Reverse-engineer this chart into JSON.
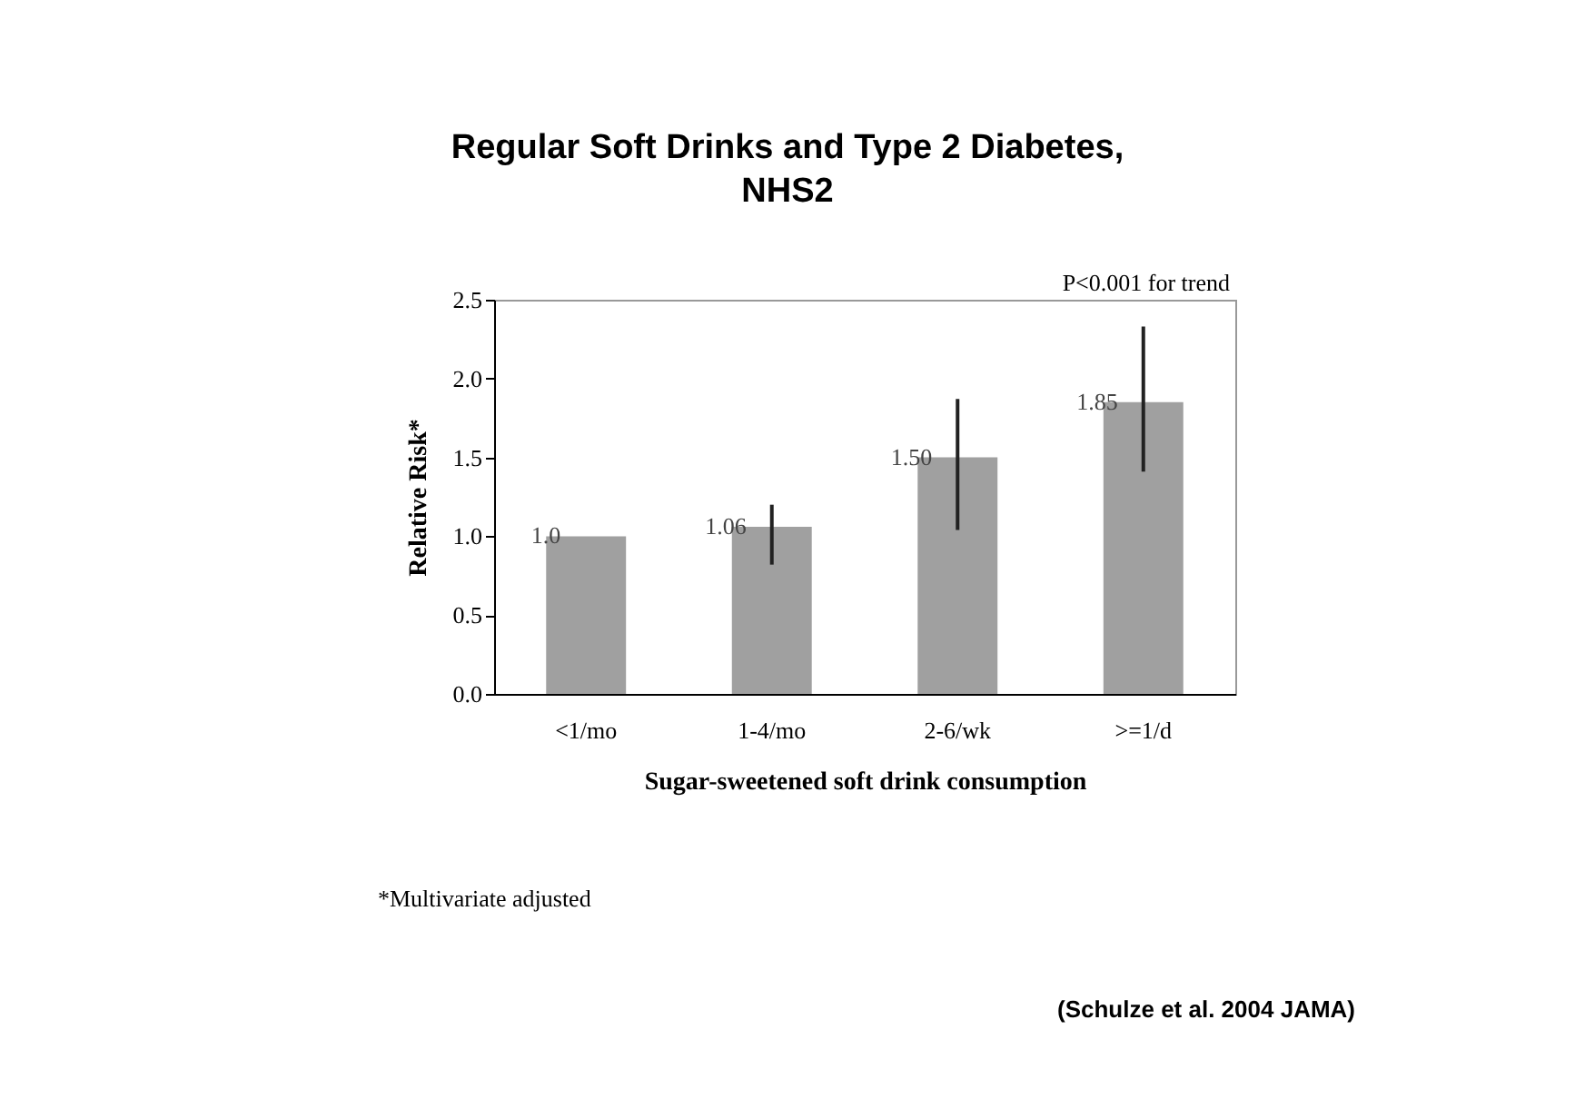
{
  "chart_data": {
    "type": "bar",
    "title": "Regular Soft Drinks and Type 2 Diabetes,\nNHS2",
    "xlabel": "Sugar-sweetened soft drink consumption",
    "ylabel": "Relative Risk*",
    "categories": [
      "<1/mo",
      "1-4/mo",
      "2-6/wk",
      ">=1/d"
    ],
    "values": [
      1.0,
      1.06,
      1.5,
      1.85
    ],
    "value_labels": [
      "1.0",
      "1.06",
      "1.50",
      "1.85"
    ],
    "errors": [
      null,
      [
        0.82,
        1.2
      ],
      [
        1.04,
        1.87
      ],
      [
        1.41,
        2.33
      ]
    ],
    "color": "#a0a0a0",
    "ylim": [
      0,
      2.5
    ],
    "yticks": [
      {
        "value": 0,
        "label": "0.0"
      },
      {
        "value": 0.5,
        "label": "0.5"
      },
      {
        "value": 1,
        "label": "1.0"
      },
      {
        "value": 1.5,
        "label": "1.5"
      },
      {
        "value": 2,
        "label": "2.0"
      },
      {
        "value": 2.5,
        "label": "2.5"
      }
    ],
    "grid": false,
    "annotations": [
      "P<0.001 for trend",
      "*Multivariate adjusted",
      "(Schulze et al. 2004 JAMA)"
    ]
  }
}
